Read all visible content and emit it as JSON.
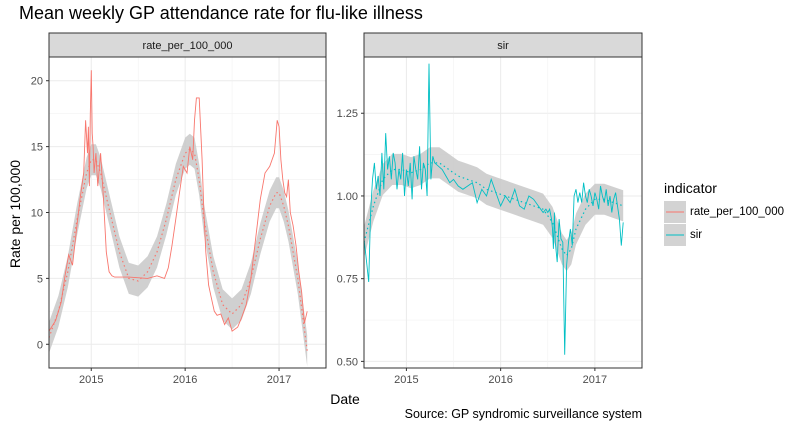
{
  "title": "Mean weekly GP attendance rate for flu-like illness",
  "ylabel": "Rate per 100,000",
  "xlabel": "Date",
  "caption": "Source: GP syndromic surveillance system",
  "legend": {
    "title": "indicator",
    "items": [
      {
        "label": "rate_per_100_000",
        "color": "#F8766D"
      },
      {
        "label": "sir",
        "color": "#00BFC4"
      }
    ]
  },
  "colors": {
    "panel_border": "#333333",
    "grid": "#ebebeb",
    "strip_fill": "#d9d9d9",
    "ribbon": "#c8c8c8"
  },
  "chart_data": [
    {
      "type": "line",
      "panel": "rate_per_100_000",
      "x_ticks": [
        "2015",
        "2016",
        "2017"
      ],
      "y_ticks": [
        "0",
        "5",
        "10",
        "15",
        "20"
      ],
      "xlim": [
        2014.55,
        2017.5
      ],
      "ylim": [
        -1.8,
        21.8
      ],
      "series": [
        {
          "name": "rate_per_100_000",
          "style": "solid",
          "x": [
            2014.55,
            2014.62,
            2014.68,
            2014.72,
            2014.76,
            2014.8,
            2014.84,
            2014.88,
            2014.92,
            2014.94,
            2014.96,
            2014.97,
            2014.98,
            2014.99,
            2015.0,
            2015.01,
            2015.02,
            2015.03,
            2015.05,
            2015.07,
            2015.1,
            2015.13,
            2015.16,
            2015.19,
            2015.22,
            2015.25,
            2015.4,
            2015.6,
            2015.7,
            2015.78,
            2015.82,
            2015.86,
            2015.9,
            2015.94,
            2015.98,
            2016.02,
            2016.05,
            2016.08,
            2016.1,
            2016.12,
            2016.15,
            2016.18,
            2016.2,
            2016.22,
            2016.25,
            2016.28,
            2016.31,
            2016.34,
            2016.38,
            2016.42,
            2016.46,
            2016.5,
            2016.56,
            2016.6,
            2016.65,
            2016.7,
            2016.75,
            2016.8,
            2016.85,
            2016.9,
            2016.95,
            2016.98,
            2017.0,
            2017.02,
            2017.04,
            2017.06,
            2017.08,
            2017.1,
            2017.12,
            2017.15,
            2017.18,
            2017.21,
            2017.24,
            2017.27,
            2017.3
          ],
          "y": [
            1.0,
            1.8,
            3.2,
            5.2,
            6.8,
            6.0,
            8.5,
            11.0,
            13.0,
            17.0,
            14.5,
            16.5,
            12.0,
            17.5,
            20.8,
            16.0,
            15.0,
            13.0,
            14.5,
            12.0,
            14.5,
            11.0,
            7.0,
            5.5,
            5.2,
            5.1,
            5.1,
            5.0,
            5.2,
            5.0,
            5.8,
            7.5,
            9.5,
            11.5,
            13.5,
            13.0,
            15.0,
            14.0,
            17.0,
            18.7,
            18.7,
            14.0,
            10.0,
            7.0,
            4.5,
            3.5,
            2.5,
            2.2,
            2.3,
            1.5,
            2.0,
            1.0,
            1.3,
            2.0,
            3.0,
            5.0,
            8.0,
            11.0,
            13.0,
            13.5,
            14.5,
            17.0,
            16.5,
            14.0,
            12.5,
            11.5,
            11.2,
            12.5,
            10.0,
            9.0,
            7.5,
            5.5,
            4.0,
            1.6,
            2.5
          ]
        },
        {
          "name": "rate_per_100_000 trend",
          "style": "dotted",
          "x": [
            2014.55,
            2014.65,
            2014.75,
            2014.85,
            2014.95,
            2015.0,
            2015.05,
            2015.1,
            2015.2,
            2015.3,
            2015.4,
            2015.5,
            2015.6,
            2015.7,
            2015.8,
            2015.9,
            2016.0,
            2016.05,
            2016.1,
            2016.15,
            2016.2,
            2016.3,
            2016.4,
            2016.5,
            2016.6,
            2016.7,
            2016.8,
            2016.9,
            2016.97,
            2017.0,
            2017.05,
            2017.1,
            2017.2,
            2017.3
          ],
          "y": [
            0.5,
            2.5,
            5.5,
            9.5,
            13.0,
            14.0,
            14.0,
            13.0,
            10.0,
            7.0,
            5.0,
            4.8,
            5.5,
            7.0,
            9.5,
            12.5,
            14.5,
            14.8,
            14.5,
            12.5,
            9.5,
            5.5,
            3.0,
            2.3,
            3.0,
            5.0,
            8.0,
            10.5,
            11.5,
            11.5,
            10.5,
            9.0,
            5.0,
            -0.5
          ]
        }
      ]
    },
    {
      "type": "line",
      "panel": "sir",
      "x_ticks": [
        "2015",
        "2016",
        "2017"
      ],
      "y_ticks": [
        "0.50",
        "0.75",
        "1.00",
        "1.25"
      ],
      "xlim": [
        2014.55,
        2017.5
      ],
      "ylim": [
        0.48,
        1.42
      ],
      "series": [
        {
          "name": "sir",
          "style": "solid",
          "x": [
            2014.55,
            2014.57,
            2014.6,
            2014.62,
            2014.64,
            2014.66,
            2014.68,
            2014.7,
            2014.72,
            2014.74,
            2014.76,
            2014.78,
            2014.8,
            2014.82,
            2014.84,
            2014.86,
            2014.88,
            2014.9,
            2014.92,
            2014.94,
            2014.96,
            2014.98,
            2015.0,
            2015.02,
            2015.04,
            2015.06,
            2015.08,
            2015.1,
            2015.12,
            2015.14,
            2015.16,
            2015.18,
            2015.2,
            2015.22,
            2015.24,
            2015.26,
            2015.28,
            2015.3,
            2015.34,
            2015.38,
            2015.42,
            2015.46,
            2015.5,
            2015.55,
            2015.6,
            2015.65,
            2015.7,
            2015.75,
            2015.8,
            2015.85,
            2015.9,
            2015.95,
            2016.0,
            2016.05,
            2016.1,
            2016.15,
            2016.2,
            2016.25,
            2016.3,
            2016.35,
            2016.4,
            2016.45,
            2016.48,
            2016.5,
            2016.52,
            2016.54,
            2016.55,
            2016.56,
            2016.57,
            2016.58,
            2016.6,
            2016.62,
            2016.64,
            2016.66,
            2016.68,
            2016.7,
            2016.72,
            2016.74,
            2016.76,
            2016.78,
            2016.8,
            2016.82,
            2016.84,
            2016.86,
            2016.88,
            2016.9,
            2016.92,
            2016.94,
            2016.96,
            2016.98,
            2017.0,
            2017.02,
            2017.04,
            2017.06,
            2017.08,
            2017.1,
            2017.12,
            2017.14,
            2017.16,
            2017.18,
            2017.2,
            2017.22,
            2017.24,
            2017.26,
            2017.28,
            2017.3
          ],
          "y": [
            0.87,
            0.82,
            0.74,
            0.95,
            1.05,
            1.1,
            1.02,
            1.06,
            1.0,
            1.13,
            1.02,
            1.19,
            1.08,
            1.12,
            1.05,
            1.13,
            1.1,
            1.02,
            1.08,
            1.05,
            1.13,
            1.0,
            1.08,
            1.03,
            1.1,
            0.99,
            1.12,
            1.08,
            1.05,
            1.15,
            1.02,
            1.1,
            1.08,
            1.0,
            1.4,
            1.05,
            1.12,
            1.1,
            1.09,
            1.08,
            1.06,
            1.04,
            1.05,
            1.03,
            1.02,
            1.03,
            1.04,
            0.98,
            1.02,
            1.0,
            1.05,
            1.01,
            0.97,
            1.0,
            0.98,
            1.02,
            0.97,
            0.96,
            1.0,
            0.99,
            0.97,
            0.95,
            0.96,
            0.95,
            0.96,
            0.93,
            0.9,
            0.84,
            0.95,
            0.86,
            0.8,
            0.93,
            0.87,
            0.86,
            0.52,
            0.79,
            0.86,
            0.9,
            0.85,
            1.0,
            1.02,
            0.98,
            1.01,
            0.98,
            1.04,
            1.0,
            0.98,
            1.02,
            1.0,
            0.97,
            1.01,
            0.99,
            0.96,
            1.03,
            1.0,
            0.98,
            1.02,
            0.97,
            1.0,
            0.95,
            0.99,
            1.01,
            0.97,
            0.93,
            0.85,
            0.92
          ]
        },
        {
          "name": "sir trend",
          "style": "dotted",
          "x": [
            2014.55,
            2014.65,
            2014.75,
            2014.85,
            2014.95,
            2015.05,
            2015.15,
            2015.25,
            2015.35,
            2015.45,
            2015.55,
            2015.65,
            2015.75,
            2015.85,
            2015.95,
            2016.05,
            2016.15,
            2016.25,
            2016.35,
            2016.45,
            2016.55,
            2016.6,
            2016.65,
            2016.7,
            2016.75,
            2016.8,
            2016.9,
            2017.0,
            2017.1,
            2017.2,
            2017.3
          ],
          "y": [
            0.86,
            0.97,
            1.05,
            1.08,
            1.08,
            1.07,
            1.08,
            1.1,
            1.1,
            1.08,
            1.06,
            1.05,
            1.04,
            1.02,
            1.01,
            1.0,
            0.99,
            0.98,
            0.97,
            0.96,
            0.92,
            0.88,
            0.84,
            0.82,
            0.84,
            0.9,
            0.96,
            0.99,
            0.99,
            0.98,
            0.97
          ]
        }
      ]
    }
  ]
}
